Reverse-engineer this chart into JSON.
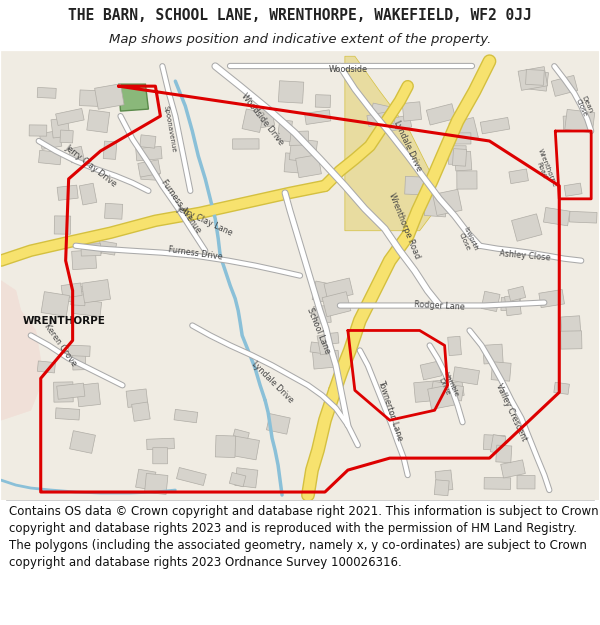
{
  "title_line1": "THE BARN, SCHOOL LANE, WRENTHORPE, WAKEFIELD, WF2 0JJ",
  "title_line2": "Map shows position and indicative extent of the property.",
  "footer_text": "Contains OS data © Crown copyright and database right 2021. This information is subject to Crown copyright and database rights 2023 and is reproduced with the permission of HM Land Registry. The polygons (including the associated geometry, namely x, y co-ordinates) are subject to Crown copyright and database rights 2023 Ordnance Survey 100026316.",
  "title_fontsize": 10.5,
  "subtitle_fontsize": 9.5,
  "footer_fontsize": 8.5,
  "fig_width": 6.0,
  "fig_height": 6.25,
  "background_color": "#ffffff",
  "map_bg": "#f0ece3",
  "road_yellow": "#f7e26e",
  "road_yellow_edge": "#d4c040",
  "road_white": "#ffffff",
  "road_gray_edge": "#aaaaaa",
  "stream_blue": "#8ac0d8",
  "building_fill": "#d6d3cc",
  "building_edge": "#b0ada6",
  "green_fill": "#8ab87a",
  "green_edge": "#5a8a4a",
  "tan_fill": "#e8dca0",
  "red_boundary": "#dd0000",
  "text_dark": "#222222",
  "text_road": "#444444",
  "wrenthorpe_pink": "#f0e0d8"
}
